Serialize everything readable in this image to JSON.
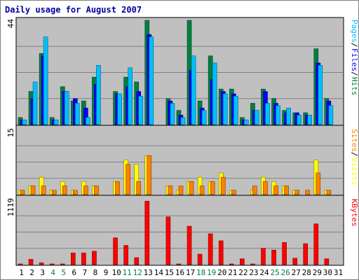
{
  "chart_data": {
    "type": "bar",
    "title": "Daily usage for August 2007",
    "days": [
      "1",
      "2",
      "3",
      "4",
      "5",
      "6",
      "7",
      "8",
      "9",
      "10",
      "11",
      "12",
      "13",
      "14",
      "15",
      "16",
      "17",
      "18",
      "19",
      "20",
      "21",
      "22",
      "23",
      "24",
      "25",
      "26",
      "27",
      "28",
      "29",
      "30",
      "31"
    ],
    "weekend_days": [
      "4",
      "5",
      "11",
      "12",
      "18",
      "19",
      "25",
      "26"
    ],
    "panels": [
      {
        "name": "hits-files-pages",
        "max_label": "44",
        "ylim": [
          0,
          44
        ],
        "series": [
          {
            "name": "Hits",
            "color": "#008040",
            "values": [
              3,
              14,
              30,
              3,
              16,
              10,
              10,
              20,
              0,
              14,
              20,
              18,
              44,
              0,
              11,
              6,
              44,
              10,
              29,
              15,
              15,
              3,
              9,
              15,
              11,
              6,
              5,
              5,
              32,
              11,
              0
            ]
          },
          {
            "name": "Files",
            "color": "#0000ff",
            "values": [
              2,
              11,
              29,
              2,
              14,
              11,
              7,
              17,
              0,
              13,
              16,
              14,
              38,
              0,
              10,
              4,
              23,
              7,
              19,
              14,
              13,
              2,
              6,
              14,
              9,
              5,
              5,
              4,
              26,
              10,
              0
            ]
          },
          {
            "name": "Pages",
            "color": "#00c0ff",
            "values": [
              2,
              18,
              37,
              2,
              14,
              9,
              3,
              25,
              0,
              13,
              24,
              12,
              37,
              0,
              9,
              3,
              29,
              6,
              26,
              13,
              12,
              2,
              6,
              9,
              8,
              7,
              4,
              4,
              25,
              8,
              0
            ]
          }
        ],
        "legend": [
          "Pages",
          "Files",
          "Hits"
        ]
      },
      {
        "name": "sites-visits",
        "max_label": "15",
        "ylim": [
          0,
          15
        ],
        "series": [
          {
            "name": "Visits",
            "color": "#ffff00",
            "values": [
              1,
              2,
              4,
              1,
              3,
              1,
              3,
              2,
              0,
              3,
              8,
              7,
              9,
              0,
              2,
              1,
              3,
              4,
              3,
              5,
              1,
              0,
              1,
              4,
              3,
              2,
              1,
              0,
              8,
              1,
              0
            ]
          },
          {
            "name": "Sites",
            "color": "#ff8000",
            "values": [
              1,
              2,
              2,
              1,
              2,
              1,
              2,
              2,
              0,
              3,
              7,
              3,
              9,
              0,
              2,
              2,
              3,
              2,
              3,
              4,
              1,
              0,
              2,
              3,
              2,
              2,
              1,
              1,
              5,
              1,
              0
            ]
          }
        ],
        "legend": [
          "Sites",
          "Visits"
        ]
      },
      {
        "name": "kbytes",
        "max_label": "1119",
        "ylim": [
          0,
          1119
        ],
        "series": [
          {
            "name": "KBytes",
            "color": "#ff0000",
            "values": [
              5,
              90,
              30,
              5,
              5,
              200,
              200,
              230,
              0,
              460,
              330,
              120,
              1090,
              0,
              820,
              5,
              660,
              180,
              530,
              410,
              10,
              100,
              5,
              280,
              250,
              380,
              110,
              360,
              700,
              100,
              0
            ]
          }
        ],
        "legend": [
          "KBytes"
        ]
      }
    ]
  }
}
